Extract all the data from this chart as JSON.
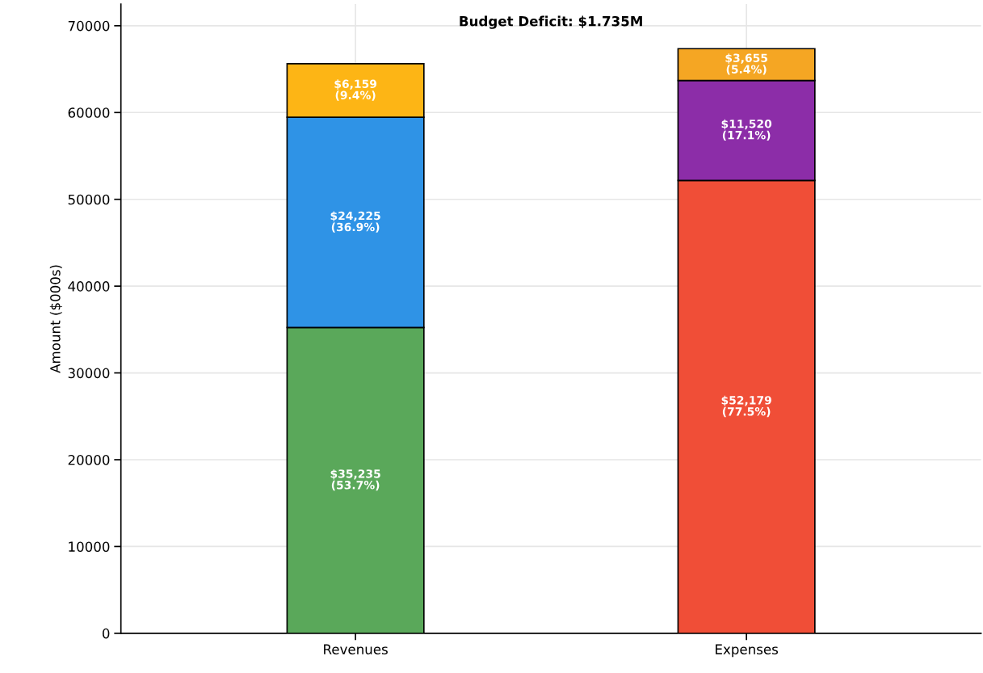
{
  "chart_data": {
    "type": "bar",
    "title": "Budget Deficit: $1.735M",
    "ylabel": "Amount ($000s)",
    "categories": [
      "Revenues",
      "Expenses"
    ],
    "stacked": true,
    "series": [
      {
        "color": "#5aa85a",
        "values": [
          35235,
          null
        ],
        "value_labels": [
          "$35,235\n(53.7%)",
          null
        ]
      },
      {
        "color": "#f04e37",
        "values": [
          null,
          52179
        ],
        "value_labels": [
          null,
          "$52,179\n(77.5%)"
        ]
      },
      {
        "color": "#2f93e6",
        "values": [
          24225,
          null
        ],
        "value_labels": [
          "$24,225\n(36.9%)",
          null
        ]
      },
      {
        "color": "#8c2da8",
        "values": [
          null,
          11520
        ],
        "value_labels": [
          null,
          "$11,520\n(17.1%)"
        ]
      },
      {
        "color": "#fdb515",
        "values": [
          6159,
          null
        ],
        "value_labels": [
          "$6,159\n(9.4%)",
          null
        ]
      },
      {
        "color": "#f5a623",
        "values": [
          null,
          3655
        ],
        "value_labels": [
          null,
          "$3,655\n(5.4%)"
        ]
      }
    ],
    "ylim": [
      0,
      72500
    ],
    "yticks": [
      0,
      10000,
      20000,
      30000,
      40000,
      50000,
      60000,
      70000
    ],
    "grid": true
  }
}
